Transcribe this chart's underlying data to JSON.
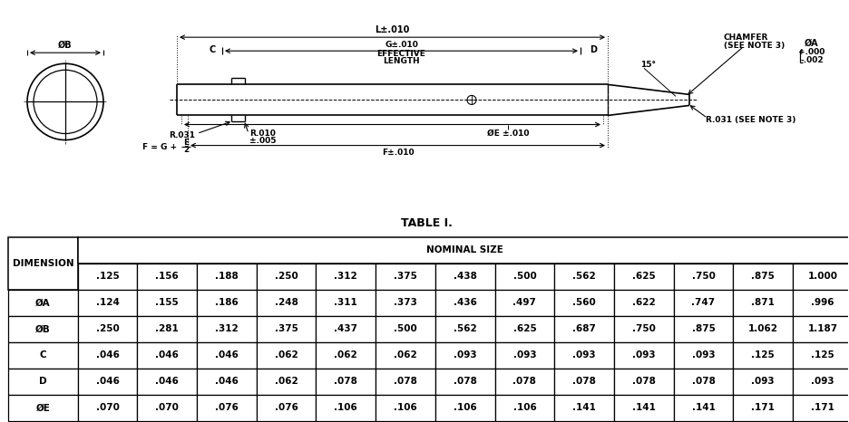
{
  "title": "TABLE I.",
  "nominal_sizes": [
    ".125",
    ".156",
    ".188",
    ".250",
    ".312",
    ".375",
    ".438",
    ".500",
    ".562",
    ".625",
    ".750",
    ".875",
    "1.000"
  ],
  "rows": [
    {
      "label": "ØA",
      "values": [
        ".124",
        ".155",
        ".186",
        ".248",
        ".311",
        ".373",
        ".436",
        ".497",
        ".560",
        ".622",
        ".747",
        ".871",
        ".996"
      ]
    },
    {
      "label": "ØB",
      "values": [
        ".250",
        ".281",
        ".312",
        ".375",
        ".437",
        ".500",
        ".562",
        ".625",
        ".687",
        ".750",
        ".875",
        "1.062",
        "1.187"
      ]
    },
    {
      "label": "C",
      "values": [
        ".046",
        ".046",
        ".046",
        ".062",
        ".062",
        ".062",
        ".093",
        ".093",
        ".093",
        ".093",
        ".093",
        ".125",
        ".125"
      ]
    },
    {
      "label": "D",
      "values": [
        ".046",
        ".046",
        ".046",
        ".062",
        ".078",
        ".078",
        ".078",
        ".078",
        ".078",
        ".078",
        ".078",
        ".093",
        ".093"
      ]
    },
    {
      "label": "ØE",
      "values": [
        ".070",
        ".070",
        ".076",
        ".076",
        ".106",
        ".106",
        ".106",
        ".106",
        ".141",
        ".141",
        ".141",
        ".171",
        ".171"
      ]
    }
  ],
  "bg_color": "#ffffff",
  "line_color": "#000000",
  "font_size_table": 7.5,
  "font_size_drawing": 6.5,
  "label_OB": "ØB",
  "label_L": "L±.010",
  "label_G": "G±.010",
  "label_effective": "EFFECTIVE",
  "label_length": "LENGTH",
  "label_C": "C",
  "label_D": "D",
  "label_chamfer": "CHAMFER",
  "label_seenote3": "(SEE NOTE 3)",
  "label_OA": "ØA",
  "label_plus000": "+.000",
  "label_minus002": "-.002",
  "label_15deg": "15°",
  "label_R031a": "R.031",
  "label_R010": "R.010",
  "label_pm005": "±.005",
  "label_OE": "ØE ±.010",
  "label_R031b": "R.031 (SEE NOTE 3)",
  "label_F_eq": "F = G +",
  "label_E_top": "E",
  "label_E_bot": "2",
  "label_F_tol": "F±.010",
  "label_NOMINAL": "NOMINAL SIZE",
  "label_DIMENSION": "DIMENSION"
}
